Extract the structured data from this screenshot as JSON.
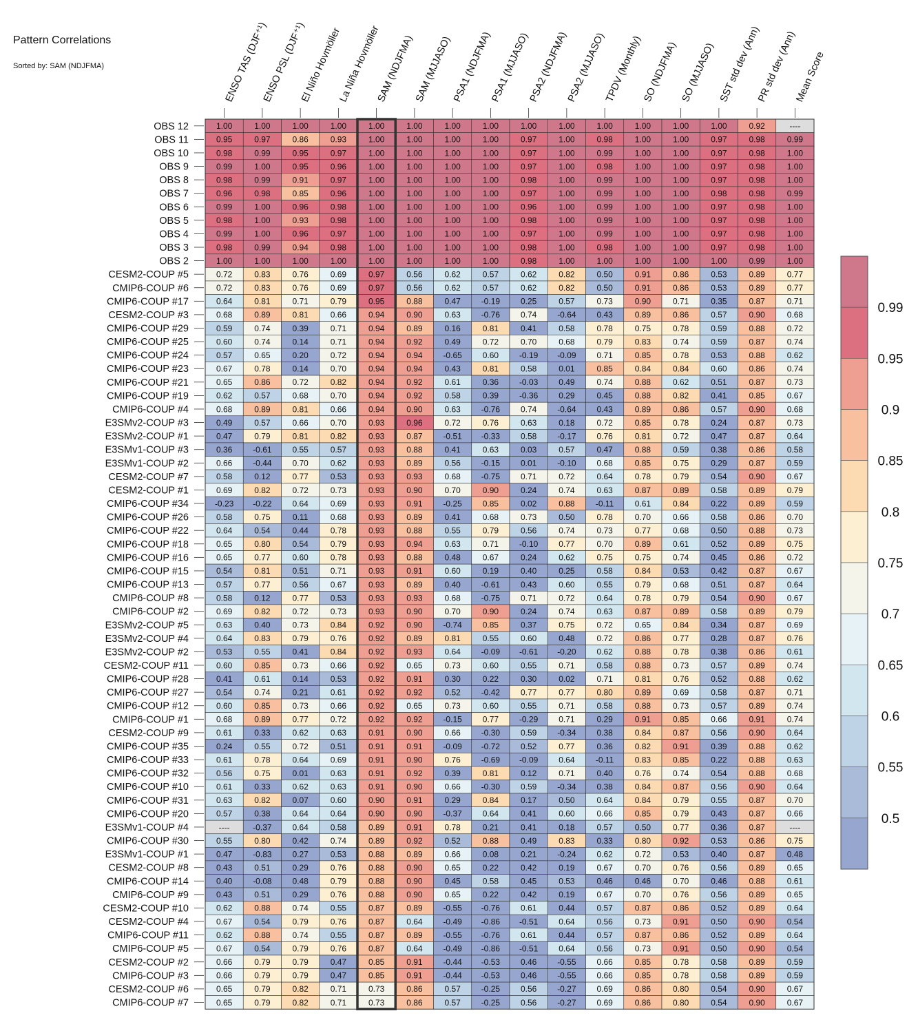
{
  "title": "Pattern Correlations",
  "subtitle": "Sorted by: SAM (NDJFMA)",
  "chart_data": {
    "type": "heatmap",
    "columns": [
      "ENSO TAS (DJF⁺¹)",
      "ENSO PSL (DJF⁺¹)",
      "El Niño Hovmöller",
      "La Niña Hovmöller",
      "SAM (NDJFMA)",
      "SAM (MJJASO)",
      "PSA1 (NDJFMA)",
      "PSA1 (MJJASO)",
      "PSA2 (NDJFMA)",
      "PSA2 (MJJASO)",
      "TPDV (Monthly)",
      "SO (NDJFMA)",
      "SO (MJJASO)",
      "SST std dev (Ann)",
      "PR std dev (Ann)",
      "Mean Score"
    ],
    "highlight_column": 4,
    "missing_marker": "----",
    "rows": [
      "OBS 12",
      "OBS 11",
      "OBS 10",
      "OBS 9",
      "OBS 8",
      "OBS 7",
      "OBS 6",
      "OBS 5",
      "OBS 4",
      "OBS 3",
      "OBS 2",
      "CESM2-COUP  #5",
      "CMIP6-COUP  #6",
      "CMIP6-COUP  #17",
      "CESM2-COUP  #3",
      "CMIP6-COUP  #29",
      "CMIP6-COUP  #25",
      "CMIP6-COUP  #24",
      "CMIP6-COUP  #23",
      "CMIP6-COUP  #21",
      "CMIP6-COUP  #19",
      "CMIP6-COUP  #4",
      "E3SMv2-COUP #3",
      "E3SMv2-COUP #1",
      "E3SMv1-COUP #3",
      "E3SMv1-COUP #2",
      "CESM2-COUP  #7",
      "CESM2-COUP  #1",
      "CMIP6-COUP  #34",
      "CMIP6-COUP  #26",
      "CMIP6-COUP  #22",
      "CMIP6-COUP  #18",
      "CMIP6-COUP  #16",
      "CMIP6-COUP  #15",
      "CMIP6-COUP  #13",
      "CMIP6-COUP  #8",
      "CMIP6-COUP  #2",
      "E3SMv2-COUP #5",
      "E3SMv2-COUP #4",
      "E3SMv2-COUP #2",
      "CESM2-COUP  #11",
      "CMIP6-COUP  #28",
      "CMIP6-COUP  #27",
      "CMIP6-COUP  #12",
      "CMIP6-COUP  #1",
      "CESM2-COUP  #9",
      "CMIP6-COUP  #35",
      "CMIP6-COUP  #33",
      "CMIP6-COUP  #32",
      "CMIP6-COUP  #10",
      "CMIP6-COUP  #31",
      "CMIP6-COUP  #20",
      "E3SMv1-COUP #4",
      "CMIP6-COUP  #30",
      "E3SMv1-COUP #1",
      "CESM2-COUP  #8",
      "CMIP6-COUP  #14",
      "CMIP6-COUP  #9",
      "CESM2-COUP  #10",
      "CESM2-COUP  #4",
      "CMIP6-COUP  #11",
      "CMIP6-COUP  #5",
      "CESM2-COUP  #2",
      "CMIP6-COUP  #3",
      "CESM2-COUP  #6",
      "CMIP6-COUP  #7"
    ],
    "values": [
      [
        1.0,
        1.0,
        1.0,
        1.0,
        1.0,
        1.0,
        1.0,
        1.0,
        1.0,
        1.0,
        1.0,
        1.0,
        1.0,
        1.0,
        0.92,
        null
      ],
      [
        0.95,
        0.97,
        0.86,
        0.93,
        1.0,
        1.0,
        1.0,
        1.0,
        0.97,
        1.0,
        0.98,
        1.0,
        1.0,
        0.97,
        0.98,
        0.99
      ],
      [
        0.98,
        0.99,
        0.95,
        0.97,
        1.0,
        1.0,
        1.0,
        1.0,
        0.97,
        1.0,
        0.99,
        1.0,
        1.0,
        0.97,
        0.98,
        1.0
      ],
      [
        0.99,
        1.0,
        0.95,
        0.96,
        1.0,
        1.0,
        1.0,
        1.0,
        0.97,
        1.0,
        0.98,
        1.0,
        1.0,
        0.97,
        0.98,
        1.0
      ],
      [
        0.98,
        0.99,
        0.91,
        0.97,
        1.0,
        1.0,
        1.0,
        1.0,
        0.98,
        1.0,
        0.99,
        1.0,
        1.0,
        0.97,
        0.98,
        1.0
      ],
      [
        0.96,
        0.98,
        0.85,
        0.96,
        1.0,
        1.0,
        1.0,
        1.0,
        0.97,
        1.0,
        0.99,
        1.0,
        1.0,
        0.98,
        0.98,
        0.99
      ],
      [
        0.99,
        1.0,
        0.96,
        0.98,
        1.0,
        1.0,
        1.0,
        1.0,
        0.96,
        1.0,
        0.99,
        1.0,
        1.0,
        0.97,
        0.98,
        1.0
      ],
      [
        0.98,
        1.0,
        0.93,
        0.98,
        1.0,
        1.0,
        1.0,
        1.0,
        0.98,
        1.0,
        0.99,
        1.0,
        1.0,
        0.97,
        0.98,
        1.0
      ],
      [
        0.99,
        1.0,
        0.96,
        0.97,
        1.0,
        1.0,
        1.0,
        1.0,
        0.97,
        1.0,
        0.99,
        1.0,
        1.0,
        0.97,
        0.98,
        1.0
      ],
      [
        0.98,
        0.99,
        0.94,
        0.98,
        1.0,
        1.0,
        1.0,
        1.0,
        0.98,
        1.0,
        0.98,
        1.0,
        1.0,
        0.97,
        0.98,
        1.0
      ],
      [
        1.0,
        1.0,
        1.0,
        1.0,
        1.0,
        1.0,
        1.0,
        1.0,
        0.98,
        1.0,
        1.0,
        1.0,
        1.0,
        1.0,
        0.99,
        1.0
      ],
      [
        0.72,
        0.83,
        0.76,
        0.69,
        0.97,
        0.56,
        0.62,
        0.57,
        0.62,
        0.82,
        0.5,
        0.91,
        0.86,
        0.53,
        0.89,
        0.77
      ],
      [
        0.72,
        0.83,
        0.76,
        0.69,
        0.97,
        0.56,
        0.62,
        0.57,
        0.62,
        0.82,
        0.5,
        0.91,
        0.86,
        0.53,
        0.89,
        0.77
      ],
      [
        0.64,
        0.81,
        0.71,
        0.79,
        0.95,
        0.88,
        0.47,
        -0.19,
        0.25,
        0.57,
        0.73,
        0.9,
        0.71,
        0.35,
        0.87,
        0.71
      ],
      [
        0.68,
        0.89,
        0.81,
        0.66,
        0.94,
        0.9,
        0.63,
        -0.76,
        0.74,
        -0.64,
        0.43,
        0.89,
        0.86,
        0.57,
        0.9,
        0.68
      ],
      [
        0.59,
        0.74,
        0.39,
        0.71,
        0.94,
        0.89,
        0.16,
        0.81,
        0.41,
        0.58,
        0.78,
        0.75,
        0.78,
        0.59,
        0.88,
        0.72
      ],
      [
        0.6,
        0.74,
        0.14,
        0.71,
        0.94,
        0.92,
        0.49,
        0.72,
        0.7,
        0.68,
        0.79,
        0.83,
        0.74,
        0.59,
        0.87,
        0.74
      ],
      [
        0.57,
        0.65,
        0.2,
        0.72,
        0.94,
        0.94,
        -0.65,
        0.6,
        -0.19,
        -0.09,
        0.71,
        0.85,
        0.78,
        0.53,
        0.88,
        0.62
      ],
      [
        0.67,
        0.78,
        0.14,
        0.7,
        0.94,
        0.94,
        0.43,
        0.81,
        0.58,
        0.01,
        0.85,
        0.84,
        0.84,
        0.6,
        0.86,
        0.74
      ],
      [
        0.65,
        0.86,
        0.72,
        0.82,
        0.94,
        0.92,
        0.61,
        0.36,
        -0.03,
        0.49,
        0.74,
        0.88,
        0.62,
        0.51,
        0.87,
        0.73
      ],
      [
        0.62,
        0.57,
        0.68,
        0.7,
        0.94,
        0.92,
        0.58,
        0.39,
        -0.36,
        0.29,
        0.45,
        0.88,
        0.82,
        0.41,
        0.85,
        0.67
      ],
      [
        0.68,
        0.89,
        0.81,
        0.66,
        0.94,
        0.9,
        0.63,
        -0.76,
        0.74,
        -0.64,
        0.43,
        0.89,
        0.86,
        0.57,
        0.9,
        0.68
      ],
      [
        0.49,
        0.57,
        0.66,
        0.7,
        0.93,
        0.96,
        0.72,
        0.76,
        0.63,
        0.18,
        0.72,
        0.85,
        0.78,
        0.24,
        0.87,
        0.73
      ],
      [
        0.47,
        0.79,
        0.81,
        0.82,
        0.93,
        0.87,
        -0.51,
        -0.33,
        0.58,
        -0.17,
        0.76,
        0.81,
        0.72,
        0.47,
        0.87,
        0.64
      ],
      [
        0.36,
        -0.61,
        0.55,
        0.57,
        0.93,
        0.88,
        0.41,
        0.63,
        0.03,
        0.57,
        0.47,
        0.88,
        0.59,
        0.38,
        0.86,
        0.58
      ],
      [
        0.66,
        -0.44,
        0.7,
        0.62,
        0.93,
        0.89,
        0.56,
        -0.15,
        0.01,
        -0.1,
        0.68,
        0.85,
        0.75,
        0.29,
        0.87,
        0.59
      ],
      [
        0.58,
        0.12,
        0.77,
        0.53,
        0.93,
        0.93,
        0.68,
        -0.75,
        0.71,
        0.72,
        0.64,
        0.78,
        0.79,
        0.54,
        0.9,
        0.67
      ],
      [
        0.69,
        0.82,
        0.72,
        0.73,
        0.93,
        0.9,
        0.7,
        0.9,
        0.24,
        0.74,
        0.63,
        0.87,
        0.89,
        0.58,
        0.89,
        0.79
      ],
      [
        -0.23,
        -0.22,
        0.64,
        0.69,
        0.93,
        0.91,
        -0.25,
        0.85,
        0.02,
        0.88,
        -0.11,
        0.61,
        0.84,
        0.22,
        0.89,
        0.59
      ],
      [
        0.58,
        0.75,
        0.11,
        0.68,
        0.93,
        0.89,
        0.41,
        0.68,
        0.73,
        0.5,
        0.78,
        0.7,
        0.66,
        0.58,
        0.86,
        0.7
      ],
      [
        0.64,
        0.54,
        0.44,
        0.78,
        0.93,
        0.88,
        0.55,
        0.79,
        0.56,
        0.74,
        0.73,
        0.77,
        0.68,
        0.5,
        0.88,
        0.73
      ],
      [
        0.65,
        0.8,
        0.54,
        0.79,
        0.93,
        0.94,
        0.63,
        0.71,
        -0.1,
        0.77,
        0.7,
        0.89,
        0.61,
        0.52,
        0.89,
        0.75
      ],
      [
        0.65,
        0.77,
        0.6,
        0.78,
        0.93,
        0.88,
        0.48,
        0.67,
        0.24,
        0.62,
        0.75,
        0.75,
        0.74,
        0.45,
        0.86,
        0.72
      ],
      [
        0.54,
        0.81,
        0.51,
        0.71,
        0.93,
        0.91,
        0.6,
        0.19,
        0.4,
        0.25,
        0.58,
        0.84,
        0.53,
        0.42,
        0.87,
        0.67
      ],
      [
        0.57,
        0.77,
        0.56,
        0.67,
        0.93,
        0.89,
        0.4,
        -0.61,
        0.43,
        0.6,
        0.55,
        0.79,
        0.68,
        0.51,
        0.87,
        0.64
      ],
      [
        0.58,
        0.12,
        0.77,
        0.53,
        0.93,
        0.93,
        0.68,
        -0.75,
        0.71,
        0.72,
        0.64,
        0.78,
        0.79,
        0.54,
        0.9,
        0.67
      ],
      [
        0.69,
        0.82,
        0.72,
        0.73,
        0.93,
        0.9,
        0.7,
        0.9,
        0.24,
        0.74,
        0.63,
        0.87,
        0.89,
        0.58,
        0.89,
        0.79
      ],
      [
        0.63,
        0.4,
        0.73,
        0.84,
        0.92,
        0.9,
        -0.74,
        0.85,
        0.37,
        0.75,
        0.72,
        0.65,
        0.84,
        0.34,
        0.87,
        0.69
      ],
      [
        0.64,
        0.83,
        0.79,
        0.76,
        0.92,
        0.89,
        0.81,
        0.55,
        0.6,
        0.48,
        0.72,
        0.86,
        0.77,
        0.28,
        0.87,
        0.76
      ],
      [
        0.53,
        0.55,
        0.41,
        0.84,
        0.92,
        0.93,
        0.64,
        -0.09,
        -0.61,
        -0.2,
        0.62,
        0.88,
        0.78,
        0.38,
        0.86,
        0.61
      ],
      [
        0.6,
        0.85,
        0.73,
        0.66,
        0.92,
        0.65,
        0.73,
        0.6,
        0.55,
        0.71,
        0.58,
        0.88,
        0.73,
        0.57,
        0.89,
        0.74
      ],
      [
        0.41,
        0.61,
        0.14,
        0.53,
        0.92,
        0.91,
        0.3,
        0.22,
        0.3,
        0.02,
        0.71,
        0.81,
        0.76,
        0.52,
        0.88,
        0.62
      ],
      [
        0.54,
        0.74,
        0.21,
        0.61,
        0.92,
        0.92,
        0.52,
        -0.42,
        0.77,
        0.77,
        0.8,
        0.89,
        0.69,
        0.58,
        0.87,
        0.71
      ],
      [
        0.6,
        0.85,
        0.73,
        0.66,
        0.92,
        0.65,
        0.73,
        0.6,
        0.55,
        0.71,
        0.58,
        0.88,
        0.73,
        0.57,
        0.89,
        0.74
      ],
      [
        0.68,
        0.89,
        0.77,
        0.72,
        0.92,
        0.92,
        -0.15,
        0.77,
        -0.29,
        0.71,
        0.29,
        0.91,
        0.85,
        0.66,
        0.91,
        0.74
      ],
      [
        0.61,
        0.33,
        0.62,
        0.63,
        0.91,
        0.9,
        0.66,
        -0.3,
        0.59,
        -0.34,
        0.38,
        0.84,
        0.87,
        0.56,
        0.9,
        0.64
      ],
      [
        0.24,
        0.55,
        0.72,
        0.51,
        0.91,
        0.91,
        -0.09,
        -0.72,
        0.52,
        0.77,
        0.36,
        0.82,
        0.91,
        0.39,
        0.88,
        0.62
      ],
      [
        0.61,
        0.78,
        0.64,
        0.69,
        0.91,
        0.9,
        0.76,
        -0.69,
        -0.09,
        0.64,
        -0.11,
        0.83,
        0.85,
        0.22,
        0.88,
        0.63
      ],
      [
        0.56,
        0.75,
        0.01,
        0.63,
        0.91,
        0.92,
        0.39,
        0.81,
        0.12,
        0.71,
        0.4,
        0.76,
        0.74,
        0.54,
        0.88,
        0.68
      ],
      [
        0.61,
        0.33,
        0.62,
        0.63,
        0.91,
        0.9,
        0.66,
        -0.3,
        0.59,
        -0.34,
        0.38,
        0.84,
        0.87,
        0.56,
        0.9,
        0.64
      ],
      [
        0.63,
        0.82,
        0.07,
        0.6,
        0.9,
        0.91,
        0.29,
        0.84,
        0.17,
        0.5,
        0.64,
        0.84,
        0.79,
        0.55,
        0.87,
        0.7
      ],
      [
        0.57,
        0.38,
        0.64,
        0.64,
        0.9,
        0.9,
        -0.37,
        0.64,
        0.41,
        0.6,
        0.66,
        0.85,
        0.79,
        0.43,
        0.87,
        0.66
      ],
      [
        null,
        -0.37,
        0.64,
        0.58,
        0.89,
        0.91,
        0.78,
        0.21,
        0.41,
        0.18,
        0.57,
        0.5,
        0.77,
        0.36,
        0.87,
        null
      ],
      [
        0.55,
        0.8,
        0.42,
        0.74,
        0.89,
        0.92,
        0.52,
        0.88,
        0.49,
        0.83,
        0.33,
        0.8,
        0.92,
        0.53,
        0.86,
        0.75
      ],
      [
        0.47,
        -0.83,
        0.27,
        0.53,
        0.88,
        0.89,
        0.66,
        0.08,
        0.21,
        -0.24,
        0.62,
        0.72,
        0.53,
        0.4,
        0.87,
        0.48
      ],
      [
        0.43,
        0.51,
        0.29,
        0.76,
        0.88,
        0.9,
        0.65,
        0.22,
        0.42,
        0.19,
        0.67,
        0.7,
        0.76,
        0.56,
        0.89,
        0.65
      ],
      [
        0.4,
        -0.08,
        0.48,
        0.79,
        0.88,
        0.9,
        0.45,
        0.58,
        0.45,
        0.53,
        0.46,
        0.46,
        0.7,
        0.46,
        0.88,
        0.61
      ],
      [
        0.43,
        0.51,
        0.29,
        0.76,
        0.88,
        0.9,
        0.65,
        0.22,
        0.42,
        0.19,
        0.67,
        0.7,
        0.76,
        0.56,
        0.89,
        0.65
      ],
      [
        0.62,
        0.88,
        0.74,
        0.55,
        0.87,
        0.89,
        -0.55,
        -0.76,
        0.61,
        0.44,
        0.57,
        0.87,
        0.86,
        0.52,
        0.89,
        0.64
      ],
      [
        0.67,
        0.54,
        0.79,
        0.76,
        0.87,
        0.64,
        -0.49,
        -0.86,
        -0.51,
        0.64,
        0.56,
        0.73,
        0.91,
        0.5,
        0.9,
        0.54
      ],
      [
        0.62,
        0.88,
        0.74,
        0.55,
        0.87,
        0.89,
        -0.55,
        -0.76,
        0.61,
        0.44,
        0.57,
        0.87,
        0.86,
        0.52,
        0.89,
        0.64
      ],
      [
        0.67,
        0.54,
        0.79,
        0.76,
        0.87,
        0.64,
        -0.49,
        -0.86,
        -0.51,
        0.64,
        0.56,
        0.73,
        0.91,
        0.5,
        0.9,
        0.54
      ],
      [
        0.66,
        0.79,
        0.79,
        0.47,
        0.85,
        0.91,
        -0.44,
        -0.53,
        0.46,
        -0.55,
        0.66,
        0.85,
        0.78,
        0.58,
        0.89,
        0.59
      ],
      [
        0.66,
        0.79,
        0.79,
        0.47,
        0.85,
        0.91,
        -0.44,
        -0.53,
        0.46,
        -0.55,
        0.66,
        0.85,
        0.78,
        0.58,
        0.89,
        0.59
      ],
      [
        0.65,
        0.79,
        0.82,
        0.71,
        0.73,
        0.86,
        0.57,
        -0.25,
        0.56,
        -0.27,
        0.69,
        0.86,
        0.8,
        0.54,
        0.9,
        0.67
      ],
      [
        0.65,
        0.79,
        0.82,
        0.71,
        0.73,
        0.86,
        0.57,
        -0.25,
        0.56,
        -0.27,
        0.69,
        0.86,
        0.8,
        0.54,
        0.9,
        0.67
      ]
    ],
    "colorbar": {
      "tick_labels": [
        "0.99",
        "0.95",
        "0.9",
        "0.85",
        "0.8",
        "0.75",
        "0.7",
        "0.65",
        "0.6",
        "0.55",
        "0.5"
      ],
      "levels": [
        0.5,
        0.55,
        0.6,
        0.65,
        0.7,
        0.75,
        0.8,
        0.85,
        0.9,
        0.95,
        0.99
      ],
      "colors": [
        "#97a6cf",
        "#aabbd9",
        "#bfd3e6",
        "#d2e6ef",
        "#e6f2f6",
        "#f4f4ea",
        "#fdf0d2",
        "#fddbb2",
        "#f8c09f",
        "#ef9f91",
        "#dc6f80",
        "#d0788b"
      ],
      "missing_color": "#dddddd"
    }
  }
}
